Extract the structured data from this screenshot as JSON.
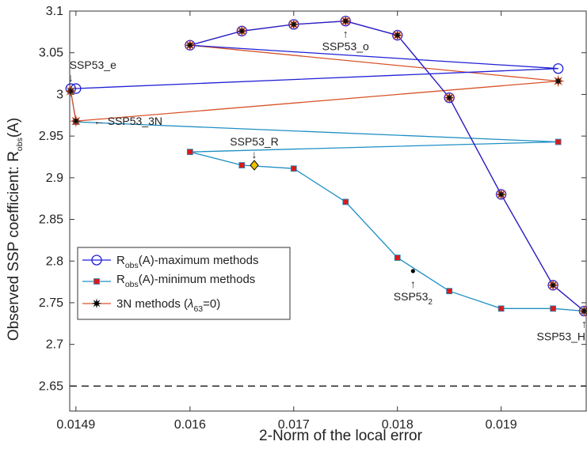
{
  "chart_data": {
    "type": "line",
    "xlabel": "2-Norm of the local error",
    "ylabel_main": "Observed SSP coefficient: R",
    "ylabel_sub": "obs",
    "ylabel_tail": "(A)",
    "xlim": [
      0.01484,
      0.01982
    ],
    "ylim": [
      2.62,
      3.1
    ],
    "xticks": [
      0.0149,
      0.016,
      0.017,
      0.018,
      0.019
    ],
    "xtick_labels": [
      "0.0149",
      "0.016",
      "0.017",
      "0.018",
      "0.019"
    ],
    "yticks": [
      2.65,
      2.7,
      2.75,
      2.8,
      2.85,
      2.9,
      2.95,
      3.0,
      3.05,
      3.1
    ],
    "ytick_labels": [
      "2.65",
      "2.7",
      "2.75",
      "2.8",
      "2.85",
      "2.9",
      "2.95",
      "3",
      "3.05",
      "3.1"
    ],
    "reference_line": {
      "y": 2.65,
      "style": "dashed",
      "color": "#000000"
    },
    "series": [
      {
        "key": "max",
        "legend_main": "R",
        "legend_sub": "obs",
        "legend_tail": "(A)-maximum methods",
        "color": "#1f1fd6",
        "marker": "circle",
        "x": [
          0.01485,
          0.0149,
          0.01955,
          0.016,
          0.0165,
          0.017,
          0.0175,
          0.018,
          0.0185,
          0.019,
          0.0195,
          0.0198
        ],
        "y": [
          3.007,
          3.007,
          3.031,
          3.059,
          3.076,
          3.084,
          3.088,
          3.071,
          2.996,
          2.88,
          2.771,
          2.74
        ]
      },
      {
        "key": "min",
        "legend_main": "R",
        "legend_sub": "obs",
        "legend_tail": "(A)-minimum methods",
        "color": "#1f8fc4",
        "marker": "square",
        "x": [
          0.01485,
          0.0149,
          0.01955,
          0.016,
          0.0165,
          0.017,
          0.0175,
          0.018,
          0.0185,
          0.019,
          0.0195,
          0.0198
        ],
        "y": [
          3.004,
          2.967,
          2.943,
          2.931,
          2.915,
          2.911,
          2.871,
          2.804,
          2.764,
          2.743,
          2.743,
          2.74
        ]
      },
      {
        "key": "n3",
        "legend_main": "3N methods (",
        "legend_lambda": "λ",
        "legend_sub": "63",
        "legend_tail": "=0)",
        "color": "#d9532a",
        "marker": "star",
        "x": [
          0.01485,
          0.0149,
          0.01955,
          0.016,
          0.0165,
          0.017,
          0.0175,
          0.018,
          0.0185,
          0.019,
          0.0195,
          0.0198
        ],
        "y": [
          3.004,
          2.968,
          3.016,
          3.059,
          3.076,
          3.084,
          3.088,
          3.071,
          2.996,
          2.88,
          2.771,
          2.74
        ]
      }
    ],
    "special_points": [
      {
        "name": "SSP53_R",
        "x": 0.01662,
        "y": 2.915,
        "marker": "diamond",
        "color": "#f0c000"
      },
      {
        "name": "SSP53_2",
        "x": 0.01815,
        "y": 2.788,
        "marker": "dot",
        "color": "#000000"
      }
    ],
    "annotations": [
      {
        "text": "SSP53_e",
        "x": 0.01485,
        "y": 3.007,
        "arrow": "↓",
        "placement": "above"
      },
      {
        "text": "SSP53_o",
        "x": 0.0175,
        "y": 3.088,
        "arrow": "↑",
        "placement": "below"
      },
      {
        "text": "SSP53_3N",
        "x": 0.0149,
        "y": 2.968,
        "arrow": "←",
        "placement": "right"
      },
      {
        "text": "SSP53_R",
        "x": 0.01662,
        "y": 2.915,
        "arrow": "↓",
        "placement": "above"
      },
      {
        "text_main": "SSP53",
        "text_sub": "2",
        "x": 0.01815,
        "y": 2.788,
        "arrow": "↑",
        "placement": "below"
      },
      {
        "text": "SSP53_H",
        "x": 0.0198,
        "y": 2.74,
        "arrow": "↑",
        "placement": "below"
      }
    ]
  }
}
